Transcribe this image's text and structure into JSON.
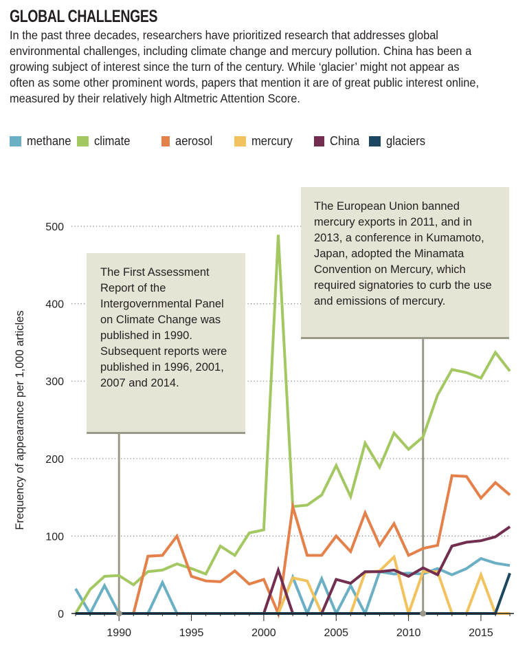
{
  "header": {
    "title": "GLOBAL CHALLENGES",
    "description": "In the past three decades, researchers have prioritized research that addresses global environmental challenges, including climate change and mercury pollution. China has been a growing subject of interest since the turn of the century. While ‘glacier’ might not appear as often as some other prominent words, papers that mention it are of great public interest online, measured by their relatively high Altmetric Attention Score."
  },
  "legend": [
    {
      "label": "methane",
      "color": "#6aafc3"
    },
    {
      "label": "climate",
      "color": "#a3c862"
    },
    {
      "label": "aerosol",
      "color": "#e4804a"
    },
    {
      "label": "mercury",
      "color": "#f2c25e"
    },
    {
      "label": "China",
      "color": "#722e4f"
    },
    {
      "label": "glaciers",
      "color": "#1d4661"
    }
  ],
  "annotations": [
    {
      "year": 1990,
      "text": "The First Assessment Report of the Intergovernmental Panel on Climate Change was published in 1990. Subsequent reports were published in 1996, 2001, 2007 and 2014."
    },
    {
      "year": 2011,
      "text": "The European Union banned mercury exports in 2011, and in 2013, a conference in Kumamoto, Japan, adopted the Minamata Convention on Mercury, which required signatories to curb the use and emissions of mercury."
    }
  ],
  "chart_data": {
    "type": "line",
    "title": "GLOBAL CHALLENGES",
    "xlabel": "",
    "ylabel": "Frequency of appearance per 1,000 articles",
    "xlim": [
      1987,
      2017
    ],
    "ylim": [
      0,
      500
    ],
    "x": [
      1987,
      1988,
      1989,
      1990,
      1991,
      1992,
      1993,
      1994,
      1995,
      1996,
      1997,
      1998,
      1999,
      2000,
      2001,
      2002,
      2003,
      2004,
      2005,
      2006,
      2007,
      2008,
      2009,
      2010,
      2011,
      2012,
      2013,
      2014,
      2015,
      2016,
      2017
    ],
    "x_ticks": [
      1990,
      1995,
      2000,
      2005,
      2010,
      2015
    ],
    "x_tick_labels": [
      "1990",
      "1995",
      "2000",
      "2005",
      "2010",
      "2015"
    ],
    "y_ticks": [
      0,
      100,
      200,
      300,
      400,
      500
    ],
    "y_tick_labels": [
      "0",
      "100",
      "200",
      "300",
      "400",
      "500"
    ],
    "grid": "horizontal dotted",
    "legend_position": "top",
    "series": [
      {
        "name": "methane",
        "color": "#6aafc3",
        "values": [
          32,
          0,
          36,
          0,
          0,
          0,
          40,
          0,
          0,
          0,
          0,
          0,
          0,
          0,
          0,
          47,
          0,
          45,
          0,
          36,
          0,
          54,
          51,
          52,
          51,
          58,
          50,
          58,
          71,
          65,
          62
        ]
      },
      {
        "name": "climate",
        "color": "#a3c862",
        "values": [
          0,
          31,
          48,
          49,
          37,
          54,
          56,
          64,
          58,
          51,
          87,
          75,
          104,
          108,
          489,
          138,
          140,
          153,
          191,
          151,
          220,
          189,
          233,
          212,
          228,
          282,
          315,
          311,
          304,
          337,
          313
        ]
      },
      {
        "name": "aerosol",
        "color": "#e4804a",
        "values": [
          0,
          0,
          0,
          0,
          0,
          74,
          75,
          100,
          48,
          42,
          41,
          55,
          38,
          44,
          0,
          138,
          75,
          75,
          100,
          80,
          130,
          88,
          116,
          75,
          84,
          88,
          178,
          177,
          149,
          169,
          153
        ]
      },
      {
        "name": "mercury",
        "color": "#f2c25e",
        "values": [
          0,
          0,
          0,
          0,
          0,
          0,
          0,
          0,
          0,
          0,
          0,
          0,
          0,
          0,
          0,
          46,
          42,
          0,
          0,
          0,
          53,
          55,
          73,
          0,
          54,
          54,
          0,
          0,
          50,
          0,
          0
        ]
      },
      {
        "name": "China",
        "color": "#722e4f",
        "values": [
          0,
          0,
          0,
          0,
          0,
          0,
          0,
          0,
          0,
          0,
          0,
          0,
          0,
          0,
          56,
          0,
          0,
          0,
          44,
          39,
          54,
          54,
          56,
          48,
          59,
          50,
          87,
          92,
          94,
          99,
          112
        ]
      },
      {
        "name": "glaciers",
        "color": "#1d4661",
        "values": [
          0,
          0,
          0,
          0,
          0,
          0,
          0,
          0,
          0,
          0,
          0,
          0,
          0,
          0,
          0,
          0,
          0,
          0,
          0,
          0,
          0,
          0,
          0,
          0,
          0,
          0,
          0,
          0,
          0,
          0,
          52
        ]
      }
    ],
    "annotations": [
      {
        "x": 1990,
        "label": "The First Assessment Report of the Intergovernmental Panel on Climate Change was published in 1990. Subsequent reports were published in 1996, 2001, 2007 and 2014."
      },
      {
        "x": 2011,
        "label": "The European Union banned mercury exports in 2011, and in 2013, a conference in Kumamoto, Japan, adopted the Minamata Convention on Mercury, which required signatories to curb the use and emissions of mercury."
      }
    ]
  }
}
